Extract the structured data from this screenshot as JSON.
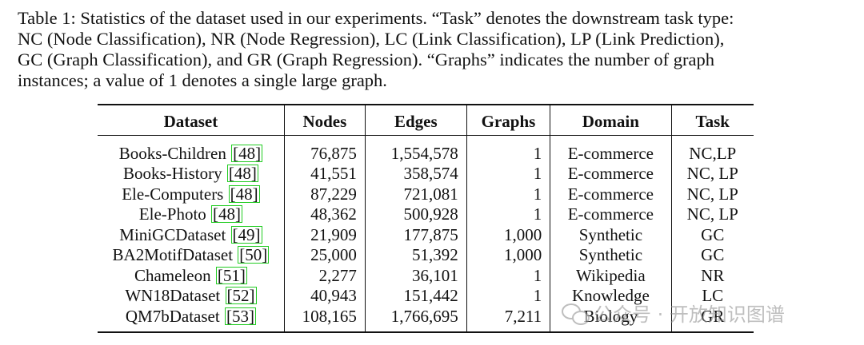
{
  "caption": {
    "lines": [
      "Table 1: Statistics of the dataset used in our experiments. “Task” denotes the downstream task type:",
      "NC (Node Classification), NR (Node Regression), LC (Link Classification), LP (Link Prediction),",
      "GC (Graph Classification), and GR (Graph Regression). “Graphs” indicates the number of graph",
      "instances; a value of 1 denotes a single large graph."
    ]
  },
  "table": {
    "headers": [
      "Dataset",
      "Nodes",
      "Edges",
      "Graphs",
      "Domain",
      "Task"
    ],
    "rows": [
      {
        "name": "Books-Children",
        "cite": "48",
        "nodes": "76,875",
        "edges": "1,554,578",
        "graphs": "1",
        "domain": "E-commerce",
        "task": "NC,LP"
      },
      {
        "name": "Books-History",
        "cite": "48",
        "nodes": "41,551",
        "edges": "358,574",
        "graphs": "1",
        "domain": "E-commerce",
        "task": "NC, LP"
      },
      {
        "name": "Ele-Computers",
        "cite": "48",
        "nodes": "87,229",
        "edges": "721,081",
        "graphs": "1",
        "domain": "E-commerce",
        "task": "NC, LP"
      },
      {
        "name": "Ele-Photo",
        "cite": "48",
        "nodes": "48,362",
        "edges": "500,928",
        "graphs": "1",
        "domain": "E-commerce",
        "task": "NC, LP"
      },
      {
        "name": "MiniGCDataset",
        "cite": "49",
        "nodes": "21,909",
        "edges": "177,875",
        "graphs": "1,000",
        "domain": "Synthetic",
        "task": "GC"
      },
      {
        "name": "BA2MotifDataset",
        "cite": "50",
        "nodes": "25,000",
        "edges": "51,392",
        "graphs": "1,000",
        "domain": "Synthetic",
        "task": "GC"
      },
      {
        "name": "Chameleon",
        "cite": "51",
        "nodes": "2,277",
        "edges": "36,101",
        "graphs": "1",
        "domain": "Wikipedia",
        "task": "NR"
      },
      {
        "name": "WN18Dataset",
        "cite": "52",
        "nodes": "40,943",
        "edges": "151,442",
        "graphs": "1",
        "domain": "Knowledge",
        "task": "LC"
      },
      {
        "name": "QM7bDataset",
        "cite": "53",
        "nodes": "108,165",
        "edges": "1,766,695",
        "graphs": "7,211",
        "domain": "Biology",
        "task": "GR"
      }
    ]
  },
  "watermark": {
    "icon": "wechat-icon",
    "text": "公众号 · 开放知识图谱"
  }
}
